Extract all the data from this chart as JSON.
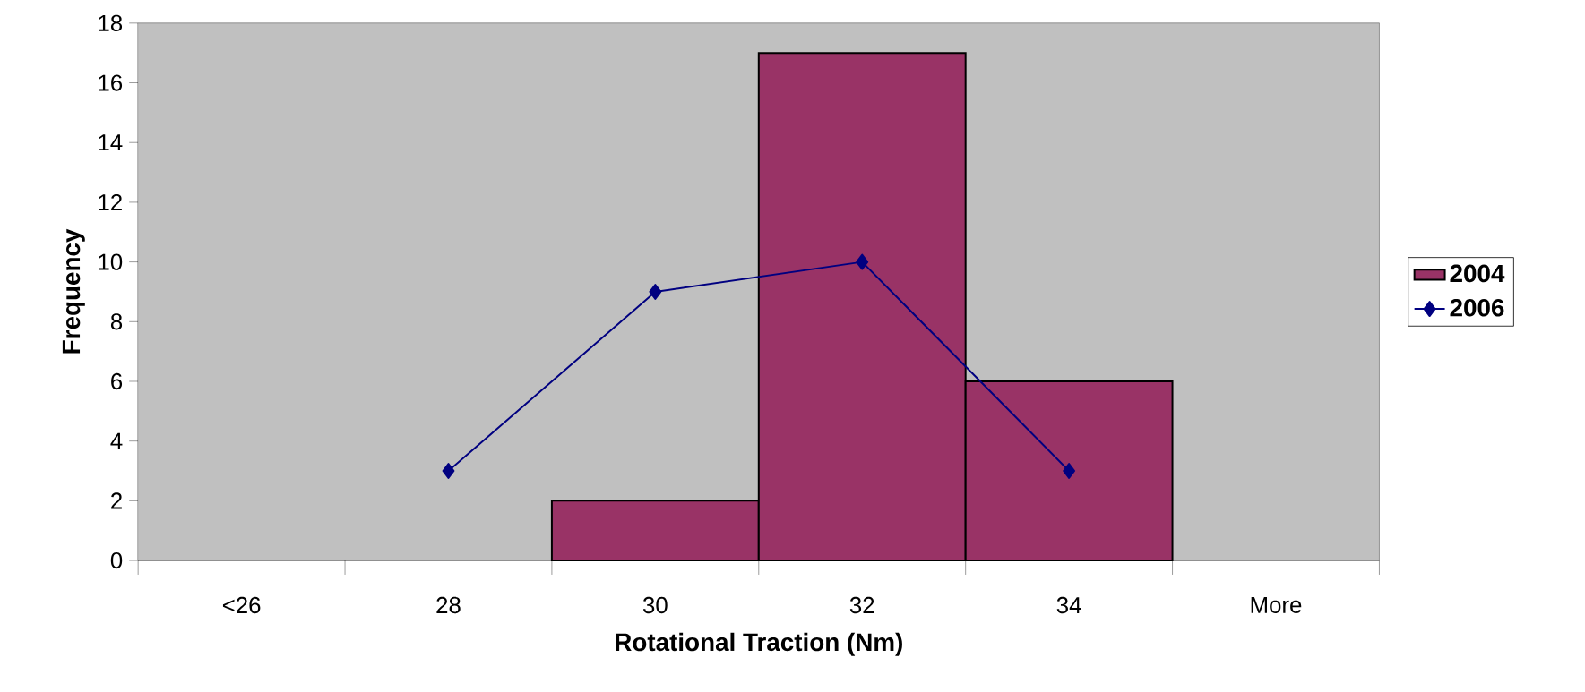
{
  "chart_data": {
    "type": "bar",
    "xlabel": "Rotational Traction (Nm)",
    "ylabel": "Frequency",
    "categories": [
      "<26",
      "28",
      "30",
      "32",
      "34",
      "More"
    ],
    "series": [
      {
        "name": "2004",
        "color": "#993366",
        "values": [
          0,
          0,
          2,
          17,
          6,
          0
        ]
      },
      {
        "name": "2006",
        "type": "line",
        "color": "#000080",
        "values": [
          null,
          3,
          9,
          10,
          3,
          null
        ]
      }
    ],
    "ylim": [
      0,
      18
    ],
    "yticks": [
      0,
      2,
      4,
      6,
      8,
      10,
      12,
      14,
      16,
      18
    ],
    "grid": false,
    "legend": "right",
    "marker": "diamond",
    "line_style": "solid"
  }
}
